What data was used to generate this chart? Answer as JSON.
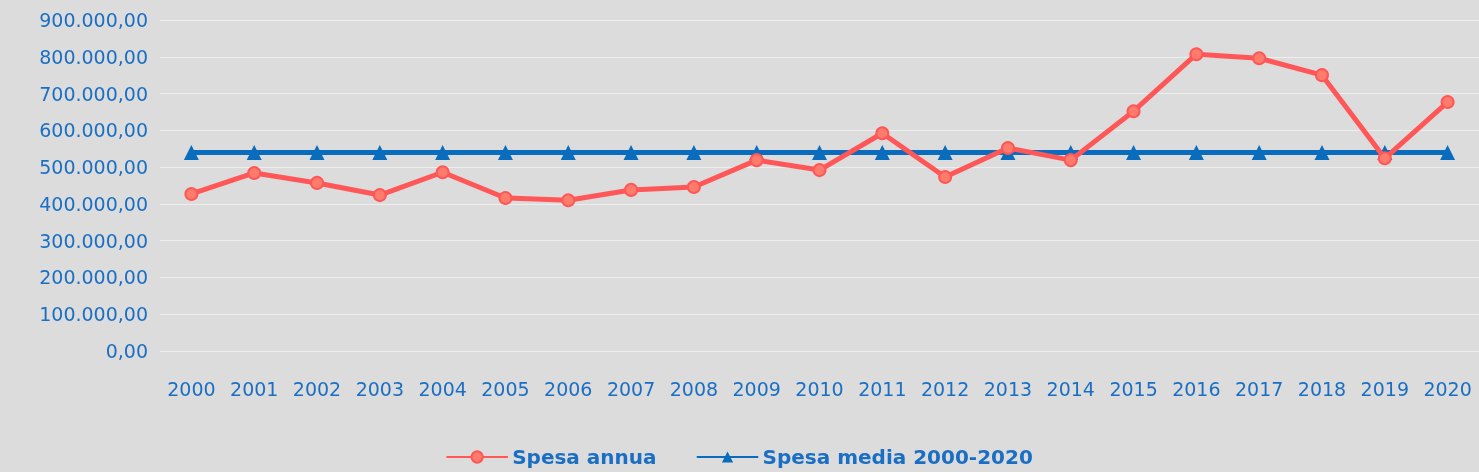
{
  "chart_data": {
    "type": "line",
    "categories": [
      "2000",
      "2001",
      "2002",
      "2003",
      "2004",
      "2005",
      "2006",
      "2007",
      "2008",
      "2009",
      "2010",
      "2011",
      "2012",
      "2013",
      "2014",
      "2015",
      "2016",
      "2017",
      "2018",
      "2019",
      "2020"
    ],
    "series": [
      {
        "name": "Spesa annua",
        "color": "#ff5757",
        "marker": "circle",
        "values": [
          427000,
          484000,
          457000,
          424000,
          486000,
          416000,
          410000,
          438000,
          446000,
          519000,
          492000,
          592000,
          473000,
          552000,
          519000,
          652000,
          807000,
          796000,
          750000,
          524000,
          677000
        ]
      },
      {
        "name": "Spesa media 2000-2020",
        "color": "#0a6cbd",
        "marker": "triangle",
        "values": [
          540000,
          540000,
          540000,
          540000,
          540000,
          540000,
          540000,
          540000,
          540000,
          540000,
          540000,
          540000,
          540000,
          540000,
          540000,
          540000,
          540000,
          540000,
          540000,
          540000,
          540000
        ]
      }
    ],
    "ylim": [
      0,
      900000
    ],
    "yticks": [
      {
        "value": 0,
        "label": "0,00"
      },
      {
        "value": 100000,
        "label": "100.000,00"
      },
      {
        "value": 200000,
        "label": "200.000,00"
      },
      {
        "value": 300000,
        "label": "300.000,00"
      },
      {
        "value": 400000,
        "label": "400.000,00"
      },
      {
        "value": 500000,
        "label": "500.000,00"
      },
      {
        "value": 600000,
        "label": "600.000,00"
      },
      {
        "value": 700000,
        "label": "700.000,00"
      },
      {
        "value": 800000,
        "label": "800.000,00"
      },
      {
        "value": 900000,
        "label": "900.000,00"
      }
    ],
    "grid": "y",
    "legend": "bottom",
    "line_style": "solid"
  }
}
